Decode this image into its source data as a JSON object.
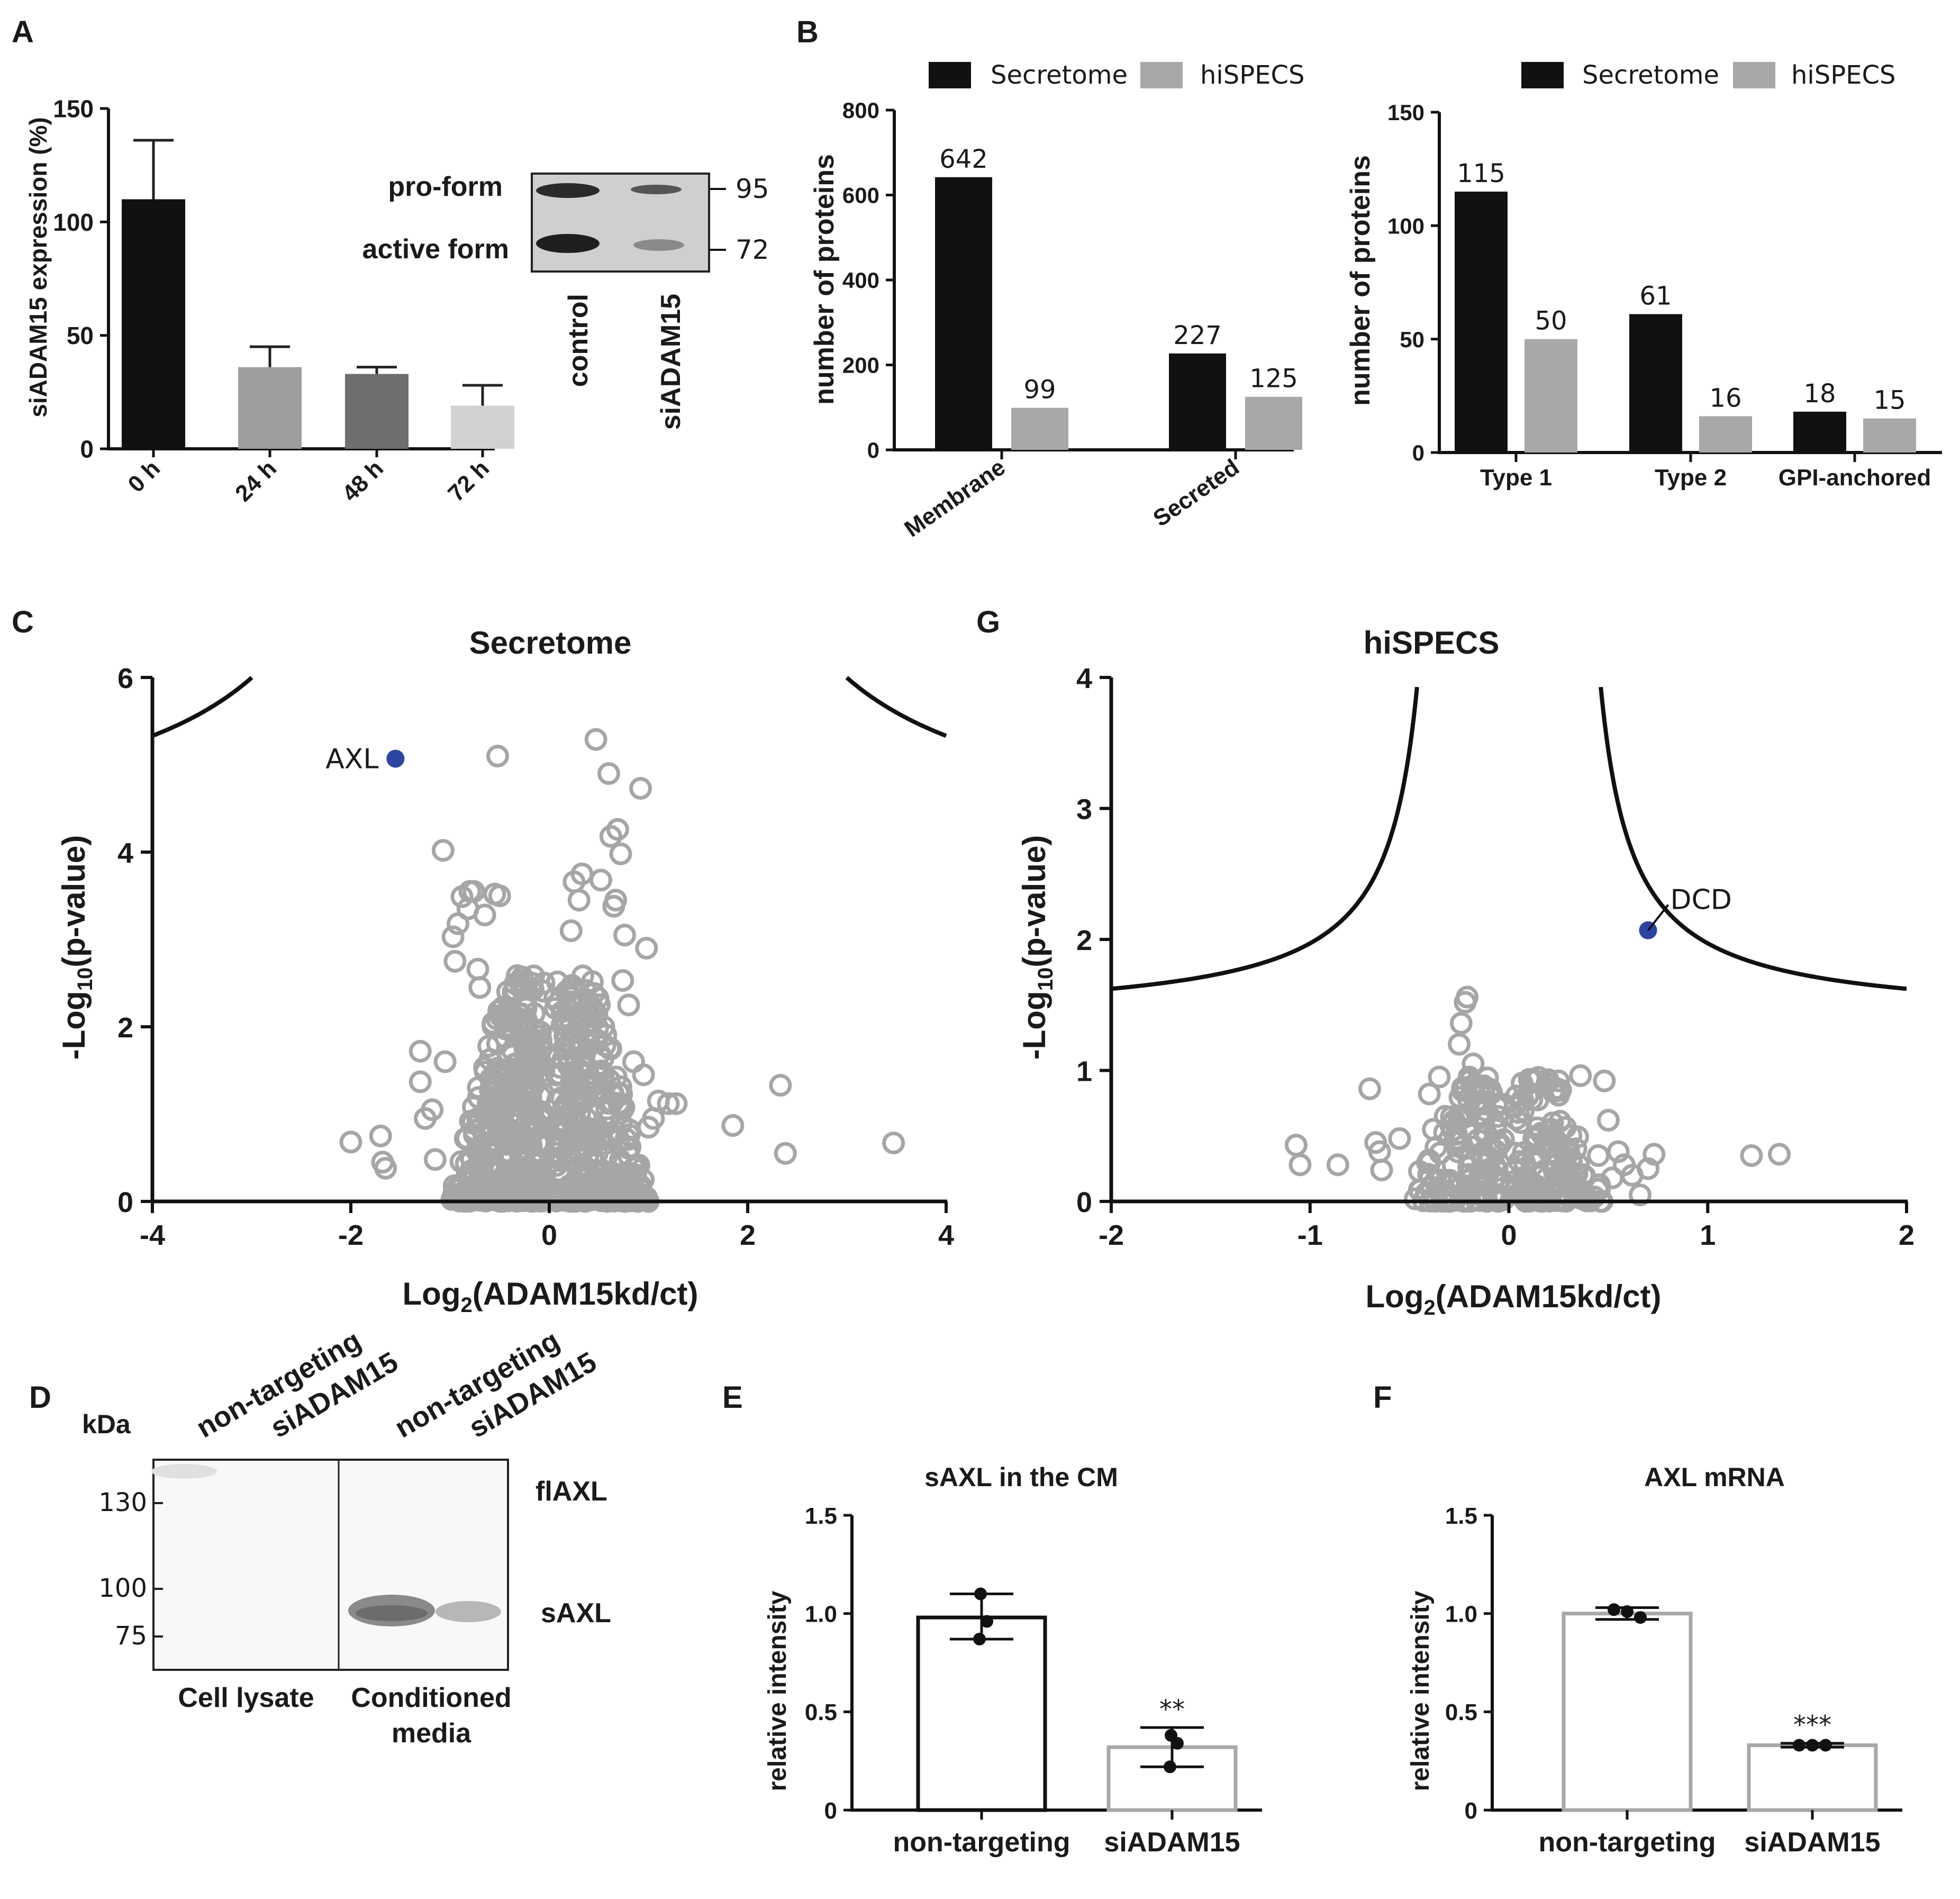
{
  "panel_labels": {
    "a": "A",
    "b": "B",
    "c": "C",
    "g": "G",
    "d": "D",
    "e": "E",
    "f": "F"
  },
  "colors": {
    "black": "#111111",
    "gray": "#a8a8a8",
    "gray_dark": "#6e6e6e",
    "gray_mid": "#9e9e9e",
    "gray_light": "#d0d2cf",
    "point": "#a6a6a6",
    "highlight": "#2b45a0"
  },
  "chart_data": [
    {
      "id": "A",
      "type": "bar",
      "categories": [
        "0 h",
        "24 h",
        "48 h",
        "72 h"
      ],
      "values": [
        110,
        36,
        33,
        19
      ],
      "errors": [
        26,
        9,
        3,
        9
      ],
      "ylabel": "siADAM15 expression (%)",
      "ylim": [
        0,
        150
      ],
      "yticks": [
        "0",
        "50",
        "100",
        "150"
      ]
    },
    {
      "id": "A_blot",
      "type": "blot",
      "band_labels": [
        "pro-form",
        "active form"
      ],
      "markers": [
        "95",
        "72"
      ],
      "lanes": [
        "control",
        "siADAM15"
      ]
    },
    {
      "id": "B1",
      "type": "bar",
      "categories": [
        "Membrane",
        "Secreted"
      ],
      "series": [
        {
          "name": "Secretome",
          "values": [
            642,
            227
          ]
        },
        {
          "name": "hiSPECS",
          "values": [
            99,
            125
          ]
        }
      ],
      "ylabel": "number of proteins",
      "ylim": [
        0,
        800
      ],
      "yticks": [
        "0",
        "200",
        "400",
        "600",
        "800"
      ]
    },
    {
      "id": "B2",
      "type": "bar",
      "categories": [
        "Type 1",
        "Type 2",
        "GPI-anchored"
      ],
      "series": [
        {
          "name": "Secretome",
          "values": [
            115,
            61,
            18
          ]
        },
        {
          "name": "hiSPECS",
          "values": [
            50,
            16,
            15
          ]
        }
      ],
      "ylabel": "number of proteins",
      "ylim": [
        0,
        150
      ],
      "yticks": [
        "0",
        "50",
        "100",
        "150"
      ]
    },
    {
      "id": "C",
      "type": "scatter",
      "title": "Secretome",
      "xlabel_main": "Log",
      "xlabel_sub": "2",
      "xlabel_rest": "(ADAM15kd/ct)",
      "ylabel_pre": "-Log",
      "ylabel_sub": "10",
      "ylabel_rest": "(p-value)",
      "xlim": [
        -4,
        4
      ],
      "ylim": [
        0,
        6
      ],
      "xticks": [
        "-4",
        "-2",
        "0",
        "2",
        "4"
      ],
      "yticks": [
        "0",
        "2",
        "4",
        "6"
      ],
      "threshold": {
        "s0": 1.0,
        "c": 4.0
      },
      "highlight": {
        "label": "AXL",
        "x": -1.55,
        "y": 5.07
      },
      "outliers": [
        [
          -2.0,
          0.68
        ],
        [
          -1.7,
          0.75
        ],
        [
          -1.68,
          0.45
        ],
        [
          -1.65,
          0.38
        ],
        [
          -1.3,
          1.37
        ],
        [
          -1.3,
          1.72
        ],
        [
          -1.25,
          0.95
        ],
        [
          -1.18,
          1.05
        ],
        [
          -1.15,
          0.48
        ],
        [
          -1.07,
          4.02
        ],
        [
          -1.05,
          1.6
        ],
        [
          -0.97,
          3.03
        ],
        [
          -0.95,
          2.75
        ],
        [
          -0.92,
          3.18
        ],
        [
          -0.88,
          3.49
        ],
        [
          -0.82,
          3.35
        ],
        [
          -0.8,
          3.55
        ],
        [
          -0.76,
          3.55
        ],
        [
          -0.72,
          2.66
        ],
        [
          -0.7,
          2.45
        ],
        [
          -0.65,
          3.28
        ],
        [
          -0.55,
          3.52
        ],
        [
          -0.5,
          3.5
        ],
        [
          -0.52,
          5.1
        ],
        [
          -0.43,
          0.08
        ],
        [
          0.22,
          3.1
        ],
        [
          0.25,
          3.66
        ],
        [
          0.3,
          3.45
        ],
        [
          0.33,
          3.75
        ],
        [
          0.4,
          1.9
        ],
        [
          0.47,
          5.29
        ],
        [
          0.52,
          3.68
        ],
        [
          0.55,
          2.0
        ],
        [
          0.6,
          4.9
        ],
        [
          0.62,
          4.18
        ],
        [
          0.65,
          3.38
        ],
        [
          0.67,
          3.45
        ],
        [
          0.69,
          4.26
        ],
        [
          0.72,
          3.98
        ],
        [
          0.74,
          2.53
        ],
        [
          0.76,
          3.05
        ],
        [
          0.8,
          2.25
        ],
        [
          0.85,
          1.6
        ],
        [
          0.92,
          4.73
        ],
        [
          0.95,
          1.45
        ],
        [
          0.98,
          2.9
        ],
        [
          1.0,
          0.85
        ],
        [
          1.05,
          0.95
        ],
        [
          1.1,
          1.15
        ],
        [
          1.2,
          1.12
        ],
        [
          1.28,
          1.12
        ],
        [
          1.85,
          0.87
        ],
        [
          2.33,
          1.33
        ],
        [
          2.38,
          0.55
        ],
        [
          3.47,
          0.67
        ]
      ]
    },
    {
      "id": "G",
      "type": "scatter",
      "title": "hiSPECS",
      "xlabel_main": "Log",
      "xlabel_sub": "2",
      "xlabel_rest": "(ADAM15kd/ct)",
      "ylabel_pre": "-Log",
      "ylabel_sub": "10",
      "ylabel_rest": "(p-value)",
      "xlim": [
        -2,
        2
      ],
      "ylim": [
        0,
        4
      ],
      "xticks": [
        "-2",
        "-1",
        "0",
        "1",
        "2"
      ],
      "yticks": [
        "0",
        "1",
        "2",
        "3",
        "4"
      ],
      "threshold": {
        "s0": 0.3,
        "c": 1.38
      },
      "highlight": {
        "label": "DCD",
        "x": 0.7,
        "y": 2.07
      },
      "outliers": [
        [
          -1.07,
          0.43
        ],
        [
          -1.05,
          0.28
        ],
        [
          -0.86,
          0.28
        ],
        [
          -0.7,
          0.86
        ],
        [
          -0.67,
          0.45
        ],
        [
          -0.65,
          0.38
        ],
        [
          -0.64,
          0.24
        ],
        [
          -0.55,
          0.48
        ],
        [
          -0.45,
          0.23
        ],
        [
          -0.4,
          0.82
        ],
        [
          -0.38,
          0.55
        ],
        [
          -0.35,
          0.95
        ],
        [
          -0.32,
          0.65
        ],
        [
          -0.28,
          0.28
        ],
        [
          -0.25,
          1.2
        ],
        [
          -0.24,
          1.36
        ],
        [
          -0.22,
          1.52
        ],
        [
          -0.21,
          1.56
        ],
        [
          -0.2,
          0.95
        ],
        [
          -0.18,
          1.05
        ],
        [
          -0.15,
          0.75
        ],
        [
          -0.1,
          0.82
        ],
        [
          -0.05,
          0.05
        ],
        [
          0.2,
          0.45
        ],
        [
          0.22,
          0.6
        ],
        [
          0.25,
          0.92
        ],
        [
          0.26,
          0.85
        ],
        [
          0.3,
          0.4
        ],
        [
          0.35,
          0.28
        ],
        [
          0.36,
          0.96
        ],
        [
          0.45,
          0.35
        ],
        [
          0.48,
          0.92
        ],
        [
          0.5,
          0.62
        ],
        [
          0.52,
          0.18
        ],
        [
          0.55,
          0.38
        ],
        [
          0.58,
          0.28
        ],
        [
          0.62,
          0.2
        ],
        [
          0.66,
          0.05
        ],
        [
          0.7,
          0.25
        ],
        [
          0.73,
          0.36
        ],
        [
          1.22,
          0.35
        ],
        [
          1.36,
          0.36
        ]
      ]
    },
    {
      "id": "D_blot",
      "type": "blot",
      "unit": "kDa",
      "lanes": [
        "non-targeting",
        "siADAM15",
        "non-targeting",
        "siADAM15"
      ],
      "markers": [
        "130",
        "100",
        "75"
      ],
      "bands": [
        "flAXL",
        "sAXL"
      ],
      "groups": [
        "Cell lysate",
        "Conditioned",
        "media"
      ]
    },
    {
      "id": "E",
      "type": "bar",
      "title": "sAXL in the CM",
      "categories": [
        "non-targeting",
        "siADAM15"
      ],
      "values": [
        0.98,
        0.32
      ],
      "errors": [
        [
          0.87,
          1.1
        ],
        [
          0.22,
          0.42
        ]
      ],
      "points": [
        [
          1.1,
          0.96,
          0.87
        ],
        [
          0.38,
          0.34,
          0.22
        ]
      ],
      "significance": "**",
      "ylabel": "relative intensity",
      "ylim": [
        0,
        1.5
      ],
      "yticks": [
        "0",
        "0.5",
        "1.0",
        "1.5"
      ]
    },
    {
      "id": "F",
      "type": "bar",
      "title": "AXL mRNA",
      "categories": [
        "non-targeting",
        "siADAM15"
      ],
      "values": [
        1.0,
        0.33
      ],
      "errors": [
        [
          0.97,
          1.03
        ],
        [
          0.32,
          0.34
        ]
      ],
      "points": [
        [
          1.02,
          1.01,
          0.98
        ],
        [
          0.33,
          0.33,
          0.33
        ]
      ],
      "significance": "***",
      "ylabel": "relative intensity",
      "ylim": [
        0,
        1.5
      ],
      "yticks": [
        "0",
        "0.5",
        "1.0",
        "1.5"
      ]
    }
  ]
}
